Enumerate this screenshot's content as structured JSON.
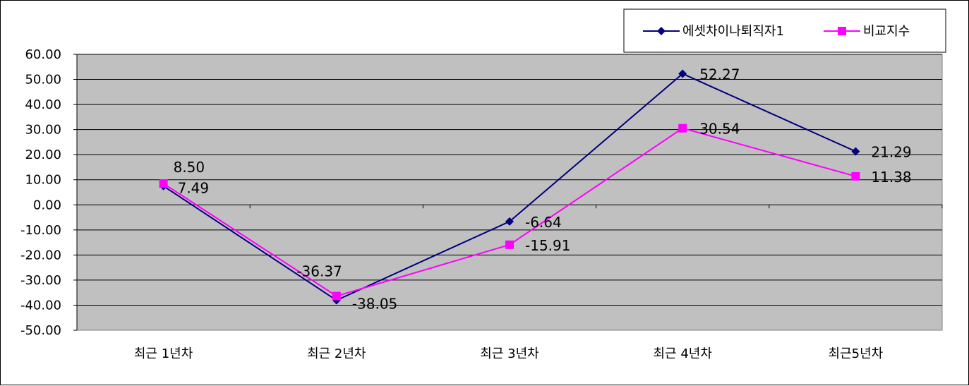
{
  "chart_data": {
    "type": "line",
    "categories": [
      "최근 1년차",
      "최근 2년차",
      "최근 3년차",
      "최근 4년차",
      "최근5년차"
    ],
    "series": [
      {
        "name": "에셋차이나퇴직자1",
        "values": [
          7.49,
          -38.05,
          -6.64,
          52.27,
          21.29
        ],
        "labels": [
          "7.49",
          "-38.05",
          "-6.64",
          "52.27",
          "21.29"
        ],
        "color": "#000080",
        "marker": "diamond"
      },
      {
        "name": "비교지수",
        "values": [
          8.5,
          -36.37,
          -15.91,
          30.54,
          11.38
        ],
        "labels": [
          "8.50",
          "-36.37",
          "-15.91",
          "30.54",
          "11.38"
        ],
        "color": "#ff00ff",
        "marker": "square"
      }
    ],
    "y_ticks": [
      "60.00",
      "50.00",
      "40.00",
      "30.00",
      "20.00",
      "10.00",
      "0.00",
      "-10.00",
      "-20.00",
      "-30.00",
      "-40.00",
      "-50.00"
    ],
    "ylim": [
      -50,
      60
    ],
    "grid": true,
    "plot_background": "#c0c0c0",
    "legend_position": "top-right"
  }
}
